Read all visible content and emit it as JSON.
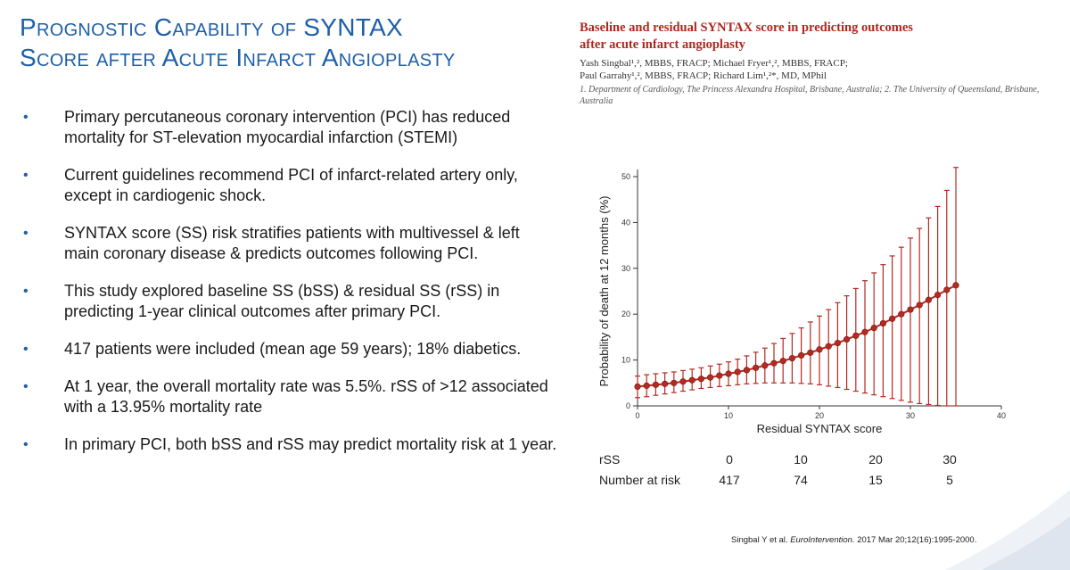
{
  "slide": {
    "title_line1": "Prognostic Capability of SYNTAX",
    "title_line2": "Score after Acute Infarct Angioplasty",
    "bullets": [
      "Primary percutaneous coronary intervention (PCI) has reduced mortality for ST-elevation myocardial infarction (STEMI)",
      "Current guidelines recommend PCI of infarct-related artery only, except in cardiogenic shock.",
      "SYNTAX score (SS)  risk stratifies patients with multivessel & left main coronary disease & predicts outcomes following PCI.",
      "This study explored baseline SS (bSS) & residual SS (rSS) in predicting 1-year clinical outcomes after primary PCI.",
      "417 patients were included (mean age 59 years); 18% diabetics.",
      "At 1 year, the overall mortality rate was 5.5%.  rSS of >12 associated with a 13.95% mortality rate",
      "In primary PCI, both bSS and rSS may predict mortality risk at 1 year."
    ],
    "bullet_symbol": "•",
    "accent_color": "#1f5fa8"
  },
  "paper": {
    "title_line1": "Baseline and residual SYNTAX score in predicting outcomes",
    "title_line2": "after acute infarct angioplasty",
    "authors_line1": "Yash Singbal¹,², MBBS, FRACP; Michael Fryer¹,², MBBS, FRACP;",
    "authors_line2": "Paul Garrahy¹,², MBBS, FRACP; Richard Lim¹,²*, MD, MPhil",
    "affiliation_line1": "1. Department of Cardiology, The Princess Alexandra Hospital, Brisbane, Australia; 2. The University of Queensland, Brisbane,",
    "affiliation_line2": "Australia",
    "title_color": "#b0271e"
  },
  "chart_data": {
    "type": "line",
    "xlabel": "Residual SYNTAX score",
    "ylabel": "Probability of death at 12 months (%)",
    "xlim": [
      0,
      40
    ],
    "ylim": [
      0,
      50
    ],
    "xticks": [
      0,
      10,
      20,
      30,
      40
    ],
    "yticks": [
      0,
      10,
      20,
      30,
      40,
      50
    ],
    "grid": false,
    "series_color": "#b52a22",
    "x": [
      0,
      1,
      2,
      3,
      4,
      5,
      6,
      7,
      8,
      9,
      10,
      11,
      12,
      13,
      14,
      15,
      16,
      17,
      18,
      19,
      20,
      21,
      22,
      23,
      24,
      25,
      26,
      27,
      28,
      29,
      30,
      31,
      32,
      33,
      34,
      35
    ],
    "y": [
      4.2,
      4.4,
      4.6,
      4.8,
      5.0,
      5.3,
      5.6,
      5.9,
      6.2,
      6.6,
      7.0,
      7.4,
      7.8,
      8.3,
      8.8,
      9.3,
      9.8,
      10.4,
      11.0,
      11.6,
      12.3,
      13.0,
      13.7,
      14.5,
      15.3,
      16.1,
      17.0,
      18.0,
      19.0,
      20.0,
      21.0,
      22.0,
      23.1,
      24.2,
      25.3,
      26.3
    ],
    "lower": [
      1.8,
      2.0,
      2.3,
      2.6,
      2.9,
      3.2,
      3.5,
      3.8,
      4.0,
      4.2,
      4.4,
      4.6,
      4.8,
      4.9,
      5.0,
      5.0,
      5.0,
      5.0,
      4.9,
      4.8,
      4.6,
      4.3,
      4.0,
      3.6,
      3.2,
      2.8,
      2.4,
      2.0,
      1.6,
      1.2,
      0.8,
      0.5,
      0.3,
      0.1,
      0.0,
      0.0
    ],
    "upper": [
      6.5,
      6.8,
      7.0,
      7.2,
      7.4,
      7.7,
      8.0,
      8.3,
      8.7,
      9.1,
      9.6,
      10.2,
      10.9,
      11.7,
      12.6,
      13.6,
      14.7,
      15.8,
      17.0,
      18.3,
      19.6,
      21.0,
      22.5,
      24.0,
      25.6,
      27.3,
      29.0,
      30.8,
      32.7,
      34.6,
      36.6,
      38.7,
      41.0,
      43.5,
      47.0,
      52.0
    ]
  },
  "risk_table": {
    "row1_label": "rSS",
    "row2_label": "Number at risk",
    "rss_values": [
      "0",
      "10",
      "20",
      "30"
    ],
    "at_risk_values": [
      "417",
      "74",
      "15",
      "5"
    ]
  },
  "citation": {
    "authors": "Singbal Y et al. ",
    "journal": "EuroIntervention.",
    "details": " 2017 Mar 20;12(16):1995-2000."
  }
}
